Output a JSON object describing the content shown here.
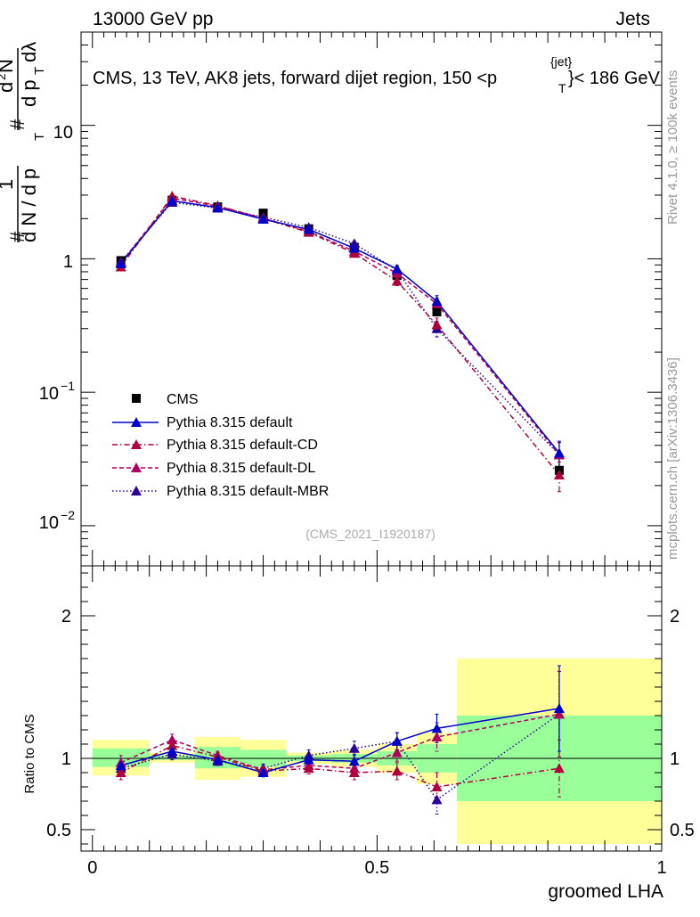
{
  "header": {
    "left": "13000 GeV pp",
    "right": "Jets"
  },
  "side": {
    "rivet": "Rivet 4.1.0, ≥ 100k events",
    "mcplots": "mcplots.cern.ch [arXiv:1306.3436]"
  },
  "colors": {
    "data": "#000000",
    "default": "#0000cc",
    "cd": "#b0003c",
    "dl": "#b0005e",
    "mbr": "#2a0099",
    "band_stat": "#99ff99",
    "band_syst": "#ffff99"
  },
  "chart_data": [
    {
      "type": "line",
      "name": "main",
      "title": "CMS, 13 TeV, AK8 jets, forward dijet region, 150 <p",
      "title_sup": "{jet}",
      "title_sub": "T",
      "title_tail": "}< 186 GeV",
      "ylabel_parts": [
        "#",
        "1",
        "d N / d p",
        "T",
        "#",
        "d",
        "2",
        "N",
        "d p",
        "T",
        "dλ"
      ],
      "yscale": "log",
      "ylim": [
        0.005,
        50
      ],
      "xlim": [
        -0.02,
        1.0
      ],
      "ytick_labels": {
        "t_m2": "10",
        "t_m2_exp": "−2",
        "t_m1": "10",
        "t_m1_exp": "−1",
        "t_0": "1",
        "t_1": "10"
      },
      "watermark": "(CMS_2021_I1920187)",
      "legend": [
        "CMS",
        "Pythia 8.315 default",
        "Pythia 8.315 default-CD",
        "Pythia 8.315 default-DL",
        "Pythia 8.315 default-MBR"
      ],
      "data_points": {
        "x": [
          0.05,
          0.14,
          0.22,
          0.3,
          0.38,
          0.46,
          0.535,
          0.605,
          0.82
        ],
        "y": [
          0.97,
          2.75,
          2.45,
          2.2,
          1.68,
          1.22,
          0.75,
          0.4,
          0.026
        ]
      },
      "series": [
        {
          "name": "Pythia 8.315 default",
          "style": "solid",
          "x": [
            0.05,
            0.14,
            0.22,
            0.3,
            0.38,
            0.46,
            0.535,
            0.605,
            0.82
          ],
          "y": [
            0.92,
            2.72,
            2.42,
            1.98,
            1.66,
            1.2,
            0.84,
            0.48,
            0.035
          ],
          "err": [
            0.05,
            0.1,
            0.08,
            0.07,
            0.06,
            0.05,
            0.05,
            0.05,
            0.008
          ]
        },
        {
          "name": "Pythia 8.315 default-CD",
          "style": "dashdot",
          "x": [
            0.05,
            0.14,
            0.22,
            0.3,
            0.38,
            0.46,
            0.535,
            0.605,
            0.82
          ],
          "y": [
            0.87,
            2.95,
            2.5,
            2.0,
            1.58,
            1.1,
            0.68,
            0.32,
            0.024
          ],
          "err": [
            0.05,
            0.1,
            0.08,
            0.07,
            0.06,
            0.05,
            0.05,
            0.04,
            0.006
          ]
        },
        {
          "name": "Pythia 8.315 default-DL",
          "style": "dashed",
          "x": [
            0.05,
            0.14,
            0.22,
            0.3,
            0.38,
            0.46,
            0.535,
            0.605,
            0.82
          ],
          "y": [
            0.93,
            2.85,
            2.48,
            2.02,
            1.6,
            1.14,
            0.78,
            0.46,
            0.034
          ],
          "err": [
            0.05,
            0.1,
            0.08,
            0.07,
            0.06,
            0.05,
            0.05,
            0.05,
            0.008
          ]
        },
        {
          "name": "Pythia 8.315 default-MBR",
          "style": "dotted",
          "x": [
            0.05,
            0.14,
            0.22,
            0.3,
            0.38,
            0.46,
            0.535,
            0.605,
            0.82
          ],
          "y": [
            0.95,
            2.65,
            2.4,
            2.05,
            1.72,
            1.3,
            0.82,
            0.3,
            0.034
          ],
          "err": [
            0.05,
            0.1,
            0.08,
            0.07,
            0.06,
            0.05,
            0.05,
            0.04,
            0.008
          ]
        }
      ]
    },
    {
      "type": "line",
      "name": "ratio",
      "ylabel": "Ratio to CMS",
      "xlabel": "groomed LHA",
      "ylim": [
        0.35,
        2.35
      ],
      "xlim": [
        -0.02,
        1.0
      ],
      "xtick_labels": [
        "0",
        "0.5",
        "1"
      ],
      "xtick_values": [
        0,
        0.5,
        1.0
      ],
      "ytick_labels": [
        "0.5",
        "1",
        "2"
      ],
      "ytick_values": [
        0.5,
        1.0,
        2.0
      ],
      "bands": [
        {
          "x0": 0.0,
          "x1": 0.1,
          "stat": [
            0.94,
            1.07
          ],
          "syst": [
            0.88,
            1.13
          ]
        },
        {
          "x0": 0.1,
          "x1": 0.18,
          "stat": [
            0.99,
            1.02
          ],
          "syst": [
            0.97,
            1.04
          ]
        },
        {
          "x0": 0.18,
          "x1": 0.26,
          "stat": [
            0.93,
            1.08
          ],
          "syst": [
            0.85,
            1.15
          ]
        },
        {
          "x0": 0.26,
          "x1": 0.34,
          "stat": [
            0.94,
            1.06
          ],
          "syst": [
            0.87,
            1.13
          ]
        },
        {
          "x0": 0.34,
          "x1": 0.42,
          "stat": [
            0.98,
            1.02
          ],
          "syst": [
            0.96,
            1.04
          ]
        },
        {
          "x0": 0.42,
          "x1": 0.5,
          "stat": [
            0.97,
            1.03
          ],
          "syst": [
            0.94,
            1.06
          ]
        },
        {
          "x0": 0.5,
          "x1": 0.57,
          "stat": [
            0.95,
            1.05
          ],
          "syst": [
            0.9,
            1.1
          ]
        },
        {
          "x0": 0.57,
          "x1": 0.64,
          "stat": [
            0.9,
            1.1
          ],
          "syst": [
            0.82,
            1.18
          ]
        },
        {
          "x0": 0.64,
          "x1": 1.0,
          "stat": [
            0.7,
            1.3
          ],
          "syst": [
            0.4,
            1.7
          ]
        }
      ],
      "series": [
        {
          "name": "Pythia 8.315 default",
          "style": "solid",
          "x": [
            0.05,
            0.14,
            0.22,
            0.3,
            0.38,
            0.46,
            0.535,
            0.605,
            0.82
          ],
          "y": [
            0.95,
            1.05,
            0.99,
            0.9,
            0.99,
            0.98,
            1.12,
            1.21,
            1.35
          ],
          "err": [
            0.05,
            0.04,
            0.03,
            0.03,
            0.04,
            0.05,
            0.06,
            0.1,
            0.3
          ]
        },
        {
          "name": "Pythia 8.315 default-CD",
          "style": "dashdot",
          "x": [
            0.05,
            0.14,
            0.22,
            0.3,
            0.38,
            0.46,
            0.535,
            0.605,
            0.82
          ],
          "y": [
            0.9,
            1.09,
            1.01,
            0.91,
            0.93,
            0.9,
            0.91,
            0.8,
            0.93
          ],
          "err": [
            0.05,
            0.04,
            0.03,
            0.03,
            0.04,
            0.05,
            0.06,
            0.1,
            0.2
          ]
        },
        {
          "name": "Pythia 8.315 default-DL",
          "style": "dashed",
          "x": [
            0.05,
            0.14,
            0.22,
            0.3,
            0.38,
            0.46,
            0.535,
            0.605,
            0.82
          ],
          "y": [
            0.97,
            1.13,
            1.02,
            0.92,
            0.95,
            0.93,
            1.04,
            1.15,
            1.31
          ],
          "err": [
            0.05,
            0.04,
            0.03,
            0.03,
            0.04,
            0.05,
            0.06,
            0.1,
            0.3
          ]
        },
        {
          "name": "Pythia 8.315 default-MBR",
          "style": "dotted",
          "x": [
            0.05,
            0.14,
            0.22,
            0.3,
            0.38,
            0.46,
            0.535,
            0.605,
            0.82
          ],
          "y": [
            0.93,
            1.03,
            0.98,
            0.93,
            1.02,
            1.07,
            1.12,
            0.71,
            1.31
          ],
          "err": [
            0.05,
            0.04,
            0.03,
            0.03,
            0.04,
            0.05,
            0.06,
            0.1,
            0.3
          ]
        }
      ]
    }
  ]
}
